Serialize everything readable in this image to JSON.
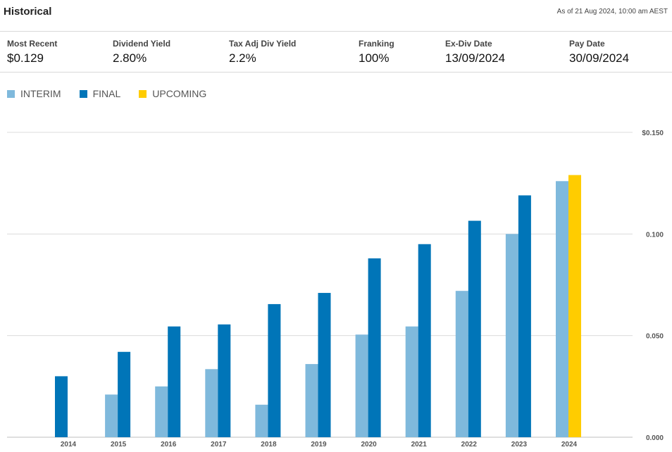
{
  "header": {
    "title": "Historical",
    "as_of": "As of 21 Aug 2024, 10:00 am AEST"
  },
  "stats": [
    {
      "label": "Most Recent",
      "value": "$0.129"
    },
    {
      "label": "Dividend Yield",
      "value": "2.80%"
    },
    {
      "label": "Tax Adj Div Yield",
      "value": "2.2%"
    },
    {
      "label": "Franking",
      "value": "100%"
    },
    {
      "label": "Ex-Div Date",
      "value": "13/09/2024"
    },
    {
      "label": "Pay Date",
      "value": "30/09/2024"
    }
  ],
  "legend": [
    {
      "label": "INTERIM",
      "color": "#7fb9dc"
    },
    {
      "label": "FINAL",
      "color": "#0075b8"
    },
    {
      "label": "UPCOMING",
      "color": "#ffcc00"
    }
  ],
  "chart_data": {
    "type": "bar",
    "categories": [
      "2014",
      "2015",
      "2016",
      "2017",
      "2018",
      "2019",
      "2020",
      "2021",
      "2022",
      "2023",
      "2024"
    ],
    "series": [
      {
        "name": "INTERIM",
        "color": "#7fb9dc",
        "values": [
          null,
          0.021,
          0.025,
          0.0335,
          0.016,
          0.036,
          0.0505,
          0.0545,
          0.072,
          0.1,
          0.126
        ]
      },
      {
        "name": "FINAL",
        "color": "#0075b8",
        "values": [
          0.03,
          0.042,
          0.0545,
          0.0555,
          0.0655,
          0.071,
          0.088,
          0.095,
          0.1065,
          0.119,
          null
        ]
      },
      {
        "name": "UPCOMING",
        "color": "#ffcc00",
        "values": [
          null,
          null,
          null,
          null,
          null,
          null,
          null,
          null,
          null,
          null,
          0.129
        ]
      }
    ],
    "y_ticks": [
      "0.000",
      "0.050",
      "0.100",
      "$0.150"
    ],
    "ylim": [
      0,
      0.15
    ],
    "grid": true,
    "legend_position": "top-left",
    "y_axis_position": "right"
  }
}
